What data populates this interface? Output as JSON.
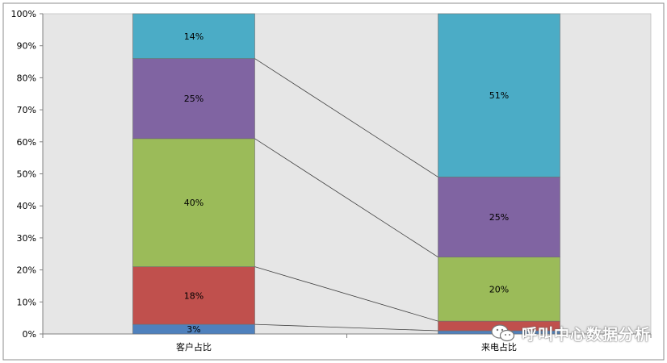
{
  "chart_data": {
    "type": "bar",
    "stacked": true,
    "percent_stacked": true,
    "categories": [
      "客户占比",
      "来电占比"
    ],
    "series": [
      {
        "values": [
          3,
          1
        ],
        "labels": [
          "3%",
          ""
        ],
        "color": "#4F81BD"
      },
      {
        "values": [
          18,
          3
        ],
        "labels": [
          "18%",
          ""
        ],
        "color": "#C0504D"
      },
      {
        "values": [
          40,
          20
        ],
        "labels": [
          "40%",
          "20%"
        ],
        "color": "#9BBB59"
      },
      {
        "values": [
          25,
          25
        ],
        "labels": [
          "25%",
          "25%"
        ],
        "color": "#8064A2"
      },
      {
        "values": [
          14,
          51
        ],
        "labels": [
          "14%",
          "51%"
        ],
        "color": "#4BACC6"
      }
    ],
    "ylim": [
      0,
      100
    ],
    "yticks": [
      "0%",
      "10%",
      "20%",
      "30%",
      "40%",
      "50%",
      "60%",
      "70%",
      "80%",
      "90%",
      "100%"
    ],
    "series_lines": true,
    "plot_background": "#E6E6E6",
    "grid": false,
    "legend": "none",
    "title": "",
    "xlabel": "",
    "ylabel": ""
  },
  "watermark": {
    "text": "呼叫中心数据分析",
    "icon": "wechat-icon"
  }
}
